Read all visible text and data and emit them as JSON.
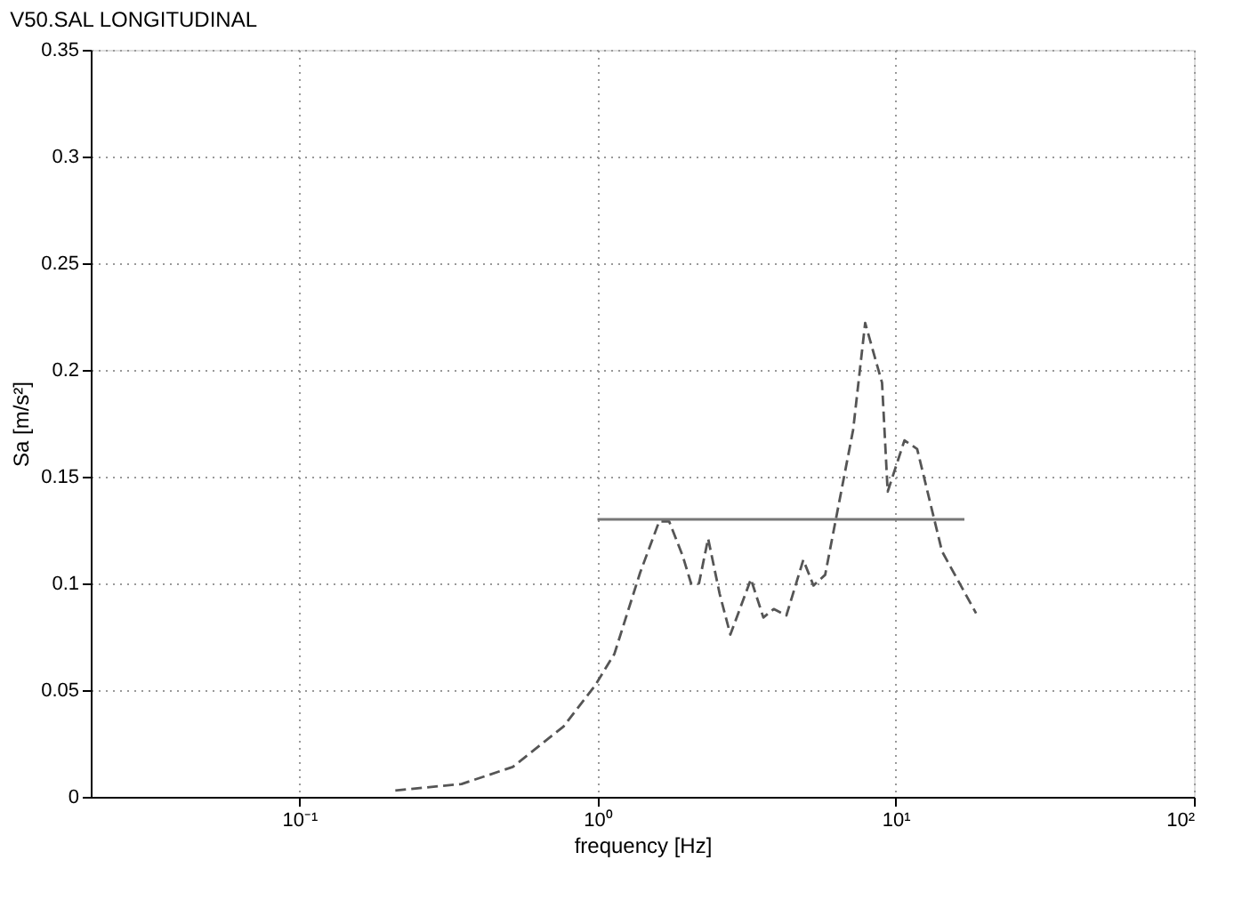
{
  "chart_data": {
    "type": "line",
    "title": "V50.SAL LONGITUDINAL",
    "xlabel": "frequency [Hz]",
    "ylabel": "Sa [m/s²]",
    "log": "x",
    "xlim": [
      0.02,
      100
    ],
    "xticks": [
      {
        "value": 0.1,
        "label": "10⁻¹"
      },
      {
        "value": 1,
        "label": "10⁰"
      },
      {
        "value": 10,
        "label": "10¹"
      },
      {
        "value": 100,
        "label": "10²"
      }
    ],
    "ylim": [
      0,
      0.35
    ],
    "yticks": [
      {
        "value": 0,
        "label": "0"
      },
      {
        "value": 0.05,
        "label": "0.05"
      },
      {
        "value": 0.1,
        "label": "0.1"
      },
      {
        "value": 0.15,
        "label": "0.15"
      },
      {
        "value": 0.2,
        "label": "0.2"
      },
      {
        "value": 0.25,
        "label": "0.25"
      },
      {
        "value": 0.3,
        "label": "0.3"
      },
      {
        "value": 0.35,
        "label": "0.35"
      }
    ],
    "grid": true,
    "series": [
      {
        "color": "#555555",
        "line_style": "dashed",
        "x": [
          0.21,
          0.35,
          0.52,
          0.77,
          0.98,
          1.14,
          1.39,
          1.61,
          1.74,
          1.93,
          2.06,
          2.19,
          2.35,
          2.57,
          2.79,
          3.27,
          3.6,
          3.9,
          4.3,
          4.9,
          5.3,
          5.8,
          7.2,
          7.9,
          9.0,
          9.4,
          10.7,
          11.8,
          14.3,
          18.6
        ],
        "values": [
          0.003,
          0.006,
          0.014,
          0.033,
          0.052,
          0.067,
          0.105,
          0.129,
          0.129,
          0.113,
          0.1,
          0.1,
          0.121,
          0.095,
          0.076,
          0.102,
          0.084,
          0.088,
          0.085,
          0.111,
          0.099,
          0.104,
          0.172,
          0.222,
          0.194,
          0.143,
          0.167,
          0.163,
          0.115,
          0.086
        ]
      },
      {
        "color": "#777777",
        "line_style": "solid",
        "x": [
          1,
          17
        ],
        "values": [
          0.13,
          0.13
        ]
      }
    ]
  }
}
